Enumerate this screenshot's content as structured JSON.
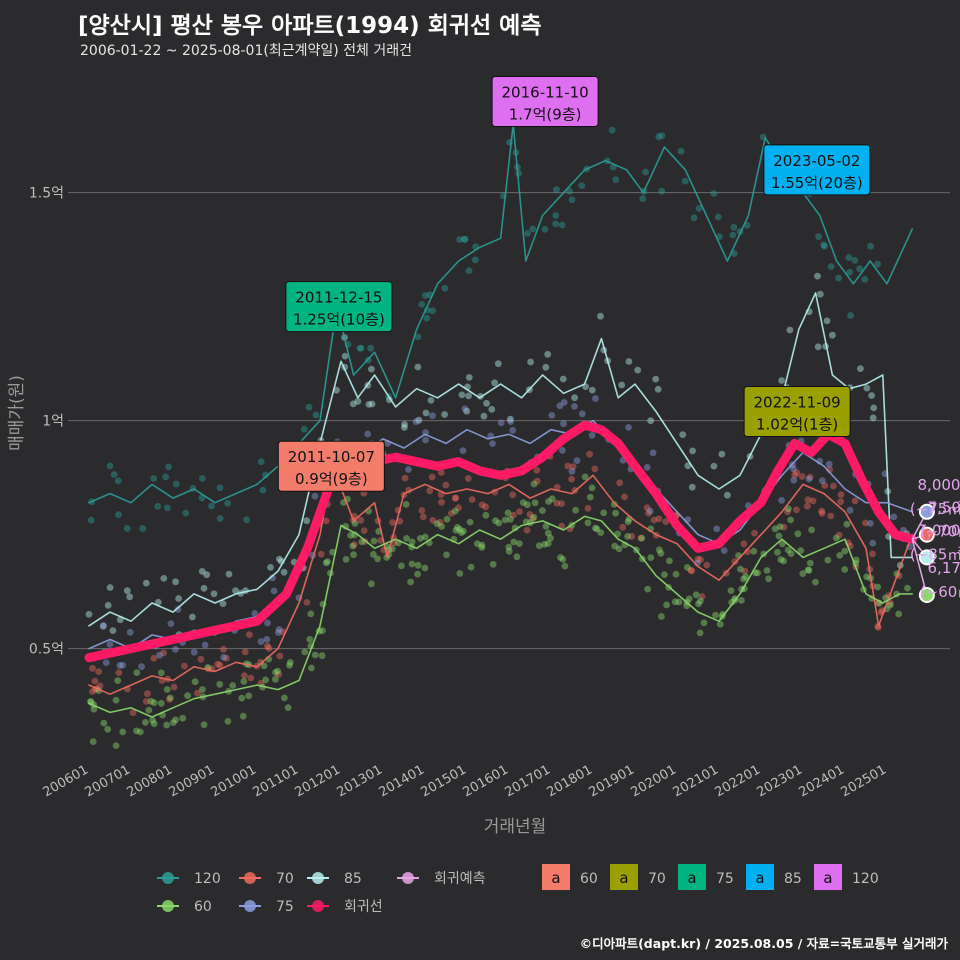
{
  "header": {
    "title": "[양산시] 평산 봉우 아파트(1994) 회귀선 예측",
    "subtitle": "2006-01-22 ~ 2025-08-01(최근계약일) 전체 거래건"
  },
  "footer": "©디아파트(dapt.kr) / 2025.08.05 / 자료=국토교통부 실거래가",
  "colors": {
    "s120": "#2a9d98",
    "s70": "#ef6b5f",
    "s85": "#b6f0ee",
    "s60": "#8ad96a",
    "s75": "#8c9ee0",
    "regression": "#ff1a66",
    "forecast": "#e6a6e6",
    "badge60": "#f47c6a",
    "badge70": "#9aa000",
    "badge75": "#00b482",
    "badge85": "#00b0f0",
    "badge120": "#dd6ff0"
  },
  "chart_data": {
    "type": "line",
    "xlabel": "거래년월",
    "ylabel": "매매가(원)",
    "x_range": [
      2005.5,
      2026.5
    ],
    "y_range": [
      0.26,
      1.78
    ],
    "y_ticks": [
      {
        "value": 0.5,
        "label": "0.5억"
      },
      {
        "value": 1.0,
        "label": "1억"
      },
      {
        "value": 1.5,
        "label": "1.5억"
      }
    ],
    "x_ticks": [
      "200601",
      "200701",
      "200801",
      "200901",
      "201001",
      "201101",
      "201201",
      "201301",
      "201401",
      "201501",
      "201601",
      "201701",
      "201801",
      "201901",
      "202001",
      "202101",
      "202201",
      "202301",
      "202401",
      "202501"
    ],
    "series": [
      {
        "name": "120",
        "key": "s120",
        "points": [
          [
            2006.0,
            0.82
          ],
          [
            2006.5,
            0.84
          ],
          [
            2007.0,
            0.82
          ],
          [
            2007.5,
            0.86
          ],
          [
            2008.0,
            0.83
          ],
          [
            2008.5,
            0.85
          ],
          [
            2009.0,
            0.82
          ],
          [
            2009.5,
            0.84
          ],
          [
            2010.0,
            0.86
          ],
          [
            2010.5,
            0.9
          ],
          [
            2011.0,
            0.95
          ],
          [
            2011.5,
            1.0
          ],
          [
            2011.9,
            1.25
          ],
          [
            2012.3,
            1.1
          ],
          [
            2012.8,
            1.15
          ],
          [
            2013.3,
            1.05
          ],
          [
            2013.8,
            1.2
          ],
          [
            2014.3,
            1.3
          ],
          [
            2014.8,
            1.35
          ],
          [
            2015.3,
            1.38
          ],
          [
            2015.8,
            1.4
          ],
          [
            2016.1,
            1.65
          ],
          [
            2016.4,
            1.35
          ],
          [
            2016.8,
            1.45
          ],
          [
            2017.3,
            1.5
          ],
          [
            2017.8,
            1.55
          ],
          [
            2018.3,
            1.57
          ],
          [
            2018.8,
            1.55
          ],
          [
            2019.2,
            1.5
          ],
          [
            2019.7,
            1.6
          ],
          [
            2020.2,
            1.55
          ],
          [
            2020.7,
            1.45
          ],
          [
            2021.2,
            1.35
          ],
          [
            2021.7,
            1.45
          ],
          [
            2022.1,
            1.62
          ],
          [
            2022.6,
            1.55
          ],
          [
            2023.0,
            1.5
          ],
          [
            2023.4,
            1.45
          ],
          [
            2023.8,
            1.35
          ],
          [
            2024.2,
            1.3
          ],
          [
            2024.6,
            1.35
          ],
          [
            2025.0,
            1.3
          ],
          [
            2025.6,
            1.42
          ]
        ]
      },
      {
        "name": "70",
        "key": "s70",
        "points": [
          [
            2006.0,
            0.42
          ],
          [
            2006.5,
            0.4
          ],
          [
            2007.0,
            0.42
          ],
          [
            2007.5,
            0.44
          ],
          [
            2008.0,
            0.43
          ],
          [
            2008.5,
            0.46
          ],
          [
            2009.0,
            0.45
          ],
          [
            2009.5,
            0.47
          ],
          [
            2010.0,
            0.46
          ],
          [
            2010.5,
            0.5
          ],
          [
            2011.0,
            0.6
          ],
          [
            2011.5,
            0.75
          ],
          [
            2011.8,
            0.9
          ],
          [
            2012.3,
            0.78
          ],
          [
            2012.8,
            0.82
          ],
          [
            2013.1,
            0.7
          ],
          [
            2013.5,
            0.84
          ],
          [
            2014.0,
            0.86
          ],
          [
            2014.5,
            0.84
          ],
          [
            2015.0,
            0.85
          ],
          [
            2015.5,
            0.84
          ],
          [
            2016.0,
            0.86
          ],
          [
            2016.5,
            0.83
          ],
          [
            2017.0,
            0.85
          ],
          [
            2017.5,
            0.84
          ],
          [
            2018.0,
            0.88
          ],
          [
            2018.5,
            0.82
          ],
          [
            2019.0,
            0.78
          ],
          [
            2019.5,
            0.75
          ],
          [
            2020.0,
            0.73
          ],
          [
            2020.5,
            0.68
          ],
          [
            2021.0,
            0.65
          ],
          [
            2021.5,
            0.7
          ],
          [
            2022.0,
            0.75
          ],
          [
            2022.5,
            0.8
          ],
          [
            2023.0,
            0.86
          ],
          [
            2023.5,
            0.84
          ],
          [
            2024.0,
            0.8
          ],
          [
            2024.5,
            0.72
          ],
          [
            2024.8,
            0.55
          ],
          [
            2025.2,
            0.65
          ],
          [
            2025.6,
            0.75
          ]
        ]
      },
      {
        "name": "85",
        "key": "s85",
        "points": [
          [
            2006.0,
            0.55
          ],
          [
            2006.5,
            0.58
          ],
          [
            2007.0,
            0.56
          ],
          [
            2007.5,
            0.6
          ],
          [
            2008.0,
            0.58
          ],
          [
            2008.5,
            0.62
          ],
          [
            2009.0,
            0.6
          ],
          [
            2009.5,
            0.62
          ],
          [
            2010.0,
            0.63
          ],
          [
            2010.5,
            0.67
          ],
          [
            2011.0,
            0.75
          ],
          [
            2011.5,
            0.95
          ],
          [
            2012.0,
            1.13
          ],
          [
            2012.4,
            1.05
          ],
          [
            2012.8,
            1.1
          ],
          [
            2013.3,
            1.03
          ],
          [
            2013.8,
            1.07
          ],
          [
            2014.3,
            1.05
          ],
          [
            2014.8,
            1.08
          ],
          [
            2015.3,
            1.05
          ],
          [
            2015.8,
            1.08
          ],
          [
            2016.3,
            1.05
          ],
          [
            2016.8,
            1.1
          ],
          [
            2017.3,
            1.06
          ],
          [
            2017.8,
            1.08
          ],
          [
            2018.2,
            1.18
          ],
          [
            2018.6,
            1.05
          ],
          [
            2019.0,
            1.08
          ],
          [
            2019.5,
            1.02
          ],
          [
            2020.0,
            0.95
          ],
          [
            2020.5,
            0.88
          ],
          [
            2021.0,
            0.85
          ],
          [
            2021.5,
            0.88
          ],
          [
            2022.0,
            0.97
          ],
          [
            2022.5,
            1.05
          ],
          [
            2022.9,
            1.2
          ],
          [
            2023.3,
            1.28
          ],
          [
            2023.7,
            1.1
          ],
          [
            2024.1,
            1.07
          ],
          [
            2024.5,
            1.08
          ],
          [
            2024.9,
            1.1
          ],
          [
            2025.1,
            0.7
          ],
          [
            2025.6,
            0.7
          ]
        ]
      },
      {
        "name": "60",
        "key": "s60",
        "points": [
          [
            2006.0,
            0.38
          ],
          [
            2006.5,
            0.36
          ],
          [
            2007.0,
            0.37
          ],
          [
            2007.5,
            0.35
          ],
          [
            2008.0,
            0.37
          ],
          [
            2008.5,
            0.39
          ],
          [
            2009.0,
            0.4
          ],
          [
            2009.5,
            0.41
          ],
          [
            2010.0,
            0.42
          ],
          [
            2010.5,
            0.41
          ],
          [
            2011.0,
            0.43
          ],
          [
            2011.5,
            0.55
          ],
          [
            2012.0,
            0.77
          ],
          [
            2012.4,
            0.75
          ],
          [
            2012.8,
            0.72
          ],
          [
            2013.3,
            0.74
          ],
          [
            2013.8,
            0.72
          ],
          [
            2014.3,
            0.75
          ],
          [
            2014.8,
            0.73
          ],
          [
            2015.3,
            0.76
          ],
          [
            2015.8,
            0.74
          ],
          [
            2016.3,
            0.77
          ],
          [
            2016.8,
            0.78
          ],
          [
            2017.3,
            0.76
          ],
          [
            2017.8,
            0.79
          ],
          [
            2018.2,
            0.78
          ],
          [
            2018.6,
            0.74
          ],
          [
            2019.0,
            0.72
          ],
          [
            2019.5,
            0.66
          ],
          [
            2020.0,
            0.62
          ],
          [
            2020.5,
            0.58
          ],
          [
            2021.0,
            0.56
          ],
          [
            2021.5,
            0.62
          ],
          [
            2022.0,
            0.7
          ],
          [
            2022.5,
            0.74
          ],
          [
            2023.0,
            0.7
          ],
          [
            2023.5,
            0.72
          ],
          [
            2024.0,
            0.74
          ],
          [
            2024.5,
            0.62
          ],
          [
            2024.9,
            0.6
          ],
          [
            2025.3,
            0.62
          ],
          [
            2025.6,
            0.62
          ]
        ]
      },
      {
        "name": "75",
        "key": "s75",
        "points": [
          [
            2006.0,
            0.5
          ],
          [
            2006.5,
            0.52
          ],
          [
            2007.0,
            0.5
          ],
          [
            2007.5,
            0.53
          ],
          [
            2008.0,
            0.52
          ],
          [
            2008.5,
            0.54
          ],
          [
            2009.0,
            0.53
          ],
          [
            2009.5,
            0.56
          ],
          [
            2010.0,
            0.57
          ],
          [
            2010.5,
            0.6
          ],
          [
            2011.0,
            0.68
          ],
          [
            2011.5,
            0.82
          ],
          [
            2012.0,
            0.95
          ],
          [
            2012.5,
            0.93
          ],
          [
            2013.0,
            0.96
          ],
          [
            2013.5,
            0.94
          ],
          [
            2014.0,
            0.97
          ],
          [
            2014.5,
            0.95
          ],
          [
            2015.0,
            0.98
          ],
          [
            2015.5,
            0.96
          ],
          [
            2016.0,
            0.97
          ],
          [
            2016.5,
            0.95
          ],
          [
            2017.0,
            0.98
          ],
          [
            2017.5,
            0.97
          ],
          [
            2018.0,
            1.0
          ],
          [
            2018.5,
            0.95
          ],
          [
            2019.0,
            0.9
          ],
          [
            2019.5,
            0.85
          ],
          [
            2020.0,
            0.8
          ],
          [
            2020.5,
            0.75
          ],
          [
            2021.0,
            0.73
          ],
          [
            2021.5,
            0.76
          ],
          [
            2022.0,
            0.82
          ],
          [
            2022.5,
            0.88
          ],
          [
            2023.0,
            0.93
          ],
          [
            2023.5,
            0.9
          ],
          [
            2024.0,
            0.85
          ],
          [
            2024.5,
            0.82
          ],
          [
            2025.0,
            0.82
          ],
          [
            2025.6,
            0.8
          ]
        ]
      },
      {
        "name": "회귀선",
        "key": "regression",
        "points": [
          [
            2006.0,
            0.48
          ],
          [
            2007.0,
            0.5
          ],
          [
            2008.0,
            0.52
          ],
          [
            2009.0,
            0.54
          ],
          [
            2010.0,
            0.56
          ],
          [
            2010.7,
            0.62
          ],
          [
            2011.2,
            0.72
          ],
          [
            2011.7,
            0.85
          ],
          [
            2012.2,
            0.9
          ],
          [
            2012.8,
            0.91
          ],
          [
            2013.3,
            0.92
          ],
          [
            2013.8,
            0.91
          ],
          [
            2014.3,
            0.9
          ],
          [
            2014.8,
            0.91
          ],
          [
            2015.3,
            0.89
          ],
          [
            2015.8,
            0.88
          ],
          [
            2016.3,
            0.89
          ],
          [
            2016.8,
            0.92
          ],
          [
            2017.3,
            0.96
          ],
          [
            2017.8,
            0.99
          ],
          [
            2018.2,
            0.98
          ],
          [
            2018.6,
            0.95
          ],
          [
            2019.0,
            0.9
          ],
          [
            2019.5,
            0.84
          ],
          [
            2020.0,
            0.77
          ],
          [
            2020.5,
            0.72
          ],
          [
            2021.0,
            0.73
          ],
          [
            2021.5,
            0.78
          ],
          [
            2022.0,
            0.82
          ],
          [
            2022.4,
            0.89
          ],
          [
            2022.8,
            0.95
          ],
          [
            2023.2,
            0.93
          ],
          [
            2023.6,
            0.97
          ],
          [
            2024.0,
            0.95
          ],
          [
            2024.4,
            0.87
          ],
          [
            2024.8,
            0.8
          ],
          [
            2025.2,
            0.75
          ],
          [
            2025.6,
            0.74
          ]
        ]
      }
    ],
    "scatter_spread": 0.06,
    "forecast_endpoints": [
      {
        "series": "75",
        "key": "s75",
        "x": 2025.95,
        "y": 0.8
      },
      {
        "series": "70",
        "key": "s70",
        "x": 2025.95,
        "y": 0.75
      },
      {
        "series": "85",
        "key": "s85",
        "x": 2025.95,
        "y": 0.7
      },
      {
        "series": "60",
        "key": "s60",
        "x": 2025.95,
        "y": 0.6175
      }
    ],
    "forecast_labels": [
      {
        "line1": "8,000",
        "line2": "(~75㎡)",
        "x": 2026.0,
        "y": 0.8
      },
      {
        "line1": "7,500",
        "line2": "(~70㎡)",
        "x": 2026.0,
        "y": 0.75
      },
      {
        "line1": "7,000",
        "line2": "(~85㎡)",
        "x": 2026.0,
        "y": 0.7
      },
      {
        "line1": "6,175",
        "line2": "(~60㎡)",
        "x": 2026.0,
        "y": 0.6175
      }
    ],
    "annotations": [
      {
        "date": "2011-10-07",
        "price": "0.9억(9층)",
        "key": "badge60",
        "x": 2011.77,
        "y": 0.9
      },
      {
        "date": "2011-12-15",
        "price": "1.25억(10층)",
        "key": "badge75",
        "x": 2011.95,
        "y": 1.25
      },
      {
        "date": "2016-11-10",
        "price": "1.7억(9층)",
        "key": "badge120",
        "x": 2016.86,
        "y": 1.7
      },
      {
        "date": "2023-05-02",
        "price": "1.55억(20층)",
        "key": "badge85",
        "x": 2023.33,
        "y": 1.55
      },
      {
        "date": "2022-11-09",
        "price": "1.02억(1층)",
        "key": "badge70",
        "x": 2022.86,
        "y": 1.02
      }
    ],
    "legend": {
      "position": "bottom",
      "line_items": [
        {
          "label": "120",
          "key": "s120"
        },
        {
          "label": "70",
          "key": "s70"
        },
        {
          "label": "85",
          "key": "s85"
        },
        {
          "label": "회귀예측",
          "key": "forecast"
        },
        {
          "label": "60",
          "key": "s60"
        },
        {
          "label": "75",
          "key": "s75"
        },
        {
          "label": "회귀선",
          "key": "regression"
        }
      ],
      "badge_glyph": "a",
      "badge_items": [
        {
          "label": "60",
          "key": "badge60"
        },
        {
          "label": "70",
          "key": "badge70"
        },
        {
          "label": "75",
          "key": "badge75"
        },
        {
          "label": "85",
          "key": "badge85"
        },
        {
          "label": "120",
          "key": "badge120"
        }
      ]
    }
  }
}
